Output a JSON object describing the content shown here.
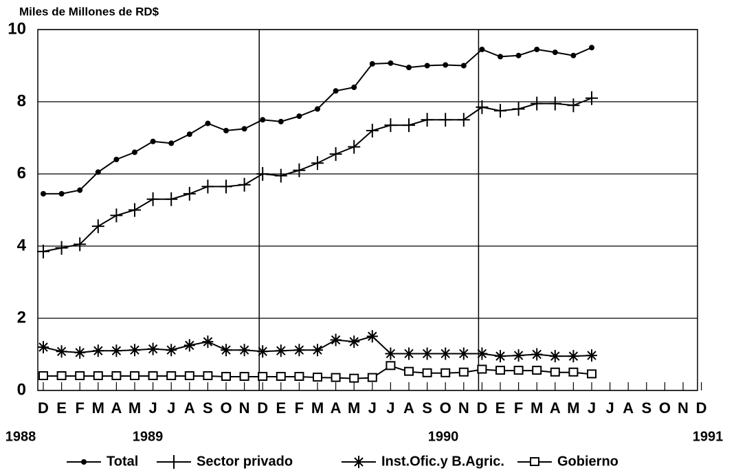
{
  "chart_data": {
    "type": "line",
    "title": "Miles de Millones de RD$",
    "categories": [
      "D",
      "E",
      "F",
      "M",
      "A",
      "M",
      "J",
      "J",
      "A",
      "S",
      "O",
      "N",
      "D",
      "E",
      "F",
      "M",
      "A",
      "M",
      "J",
      "J",
      "A",
      "S",
      "O",
      "N",
      "D",
      "E",
      "F",
      "M",
      "A",
      "M",
      "J",
      "J",
      "A",
      "S",
      "O",
      "N",
      "D"
    ],
    "years": [
      "1988",
      "1989",
      "1990",
      "1991"
    ],
    "ylim": [
      0,
      10
    ],
    "yticks": [
      0,
      2,
      4,
      6,
      8,
      10
    ],
    "grid": true,
    "series": [
      {
        "name": "Total",
        "color": "#000",
        "marker": "dot",
        "values": [
          5.45,
          5.45,
          5.55,
          6.05,
          6.4,
          6.6,
          6.9,
          6.85,
          7.1,
          7.4,
          7.2,
          7.25,
          7.5,
          7.45,
          7.6,
          7.8,
          8.3,
          8.4,
          9.05,
          9.07,
          8.95,
          9.0,
          9.02,
          9.0,
          9.45,
          9.25,
          9.28,
          9.45,
          9.37,
          9.28,
          9.5,
          null,
          null,
          null,
          null,
          null,
          null
        ]
      },
      {
        "name": "Sector privado",
        "color": "#000",
        "marker": "plus",
        "values": [
          3.85,
          3.95,
          4.05,
          4.55,
          4.85,
          5.0,
          5.3,
          5.3,
          5.45,
          5.65,
          5.65,
          5.7,
          6.0,
          5.95,
          6.1,
          6.3,
          6.55,
          6.75,
          7.2,
          7.35,
          7.35,
          7.5,
          7.5,
          7.5,
          7.85,
          7.75,
          7.8,
          7.95,
          7.95,
          7.9,
          8.1,
          null,
          null,
          null,
          null,
          null,
          null
        ]
      },
      {
        "name": "Inst.Ofic.y B.Agric.",
        "color": "#000",
        "marker": "star",
        "values": [
          1.2,
          1.08,
          1.05,
          1.1,
          1.1,
          1.12,
          1.15,
          1.12,
          1.25,
          1.35,
          1.12,
          1.12,
          1.08,
          1.1,
          1.12,
          1.12,
          1.4,
          1.35,
          1.5,
          1.02,
          1.02,
          1.02,
          1.02,
          1.02,
          1.02,
          0.95,
          0.97,
          1.0,
          0.95,
          0.95,
          0.97,
          null,
          null,
          null,
          null,
          null,
          null
        ]
      },
      {
        "name": "Gobierno",
        "color": "#000",
        "marker": "square",
        "values": [
          0.4,
          0.4,
          0.4,
          0.4,
          0.4,
          0.4,
          0.4,
          0.4,
          0.4,
          0.4,
          0.38,
          0.38,
          0.38,
          0.38,
          0.38,
          0.36,
          0.35,
          0.33,
          0.35,
          0.68,
          0.52,
          0.48,
          0.48,
          0.5,
          0.58,
          0.55,
          0.55,
          0.55,
          0.5,
          0.5,
          0.45,
          null,
          null,
          null,
          null,
          null,
          null
        ]
      }
    ]
  }
}
